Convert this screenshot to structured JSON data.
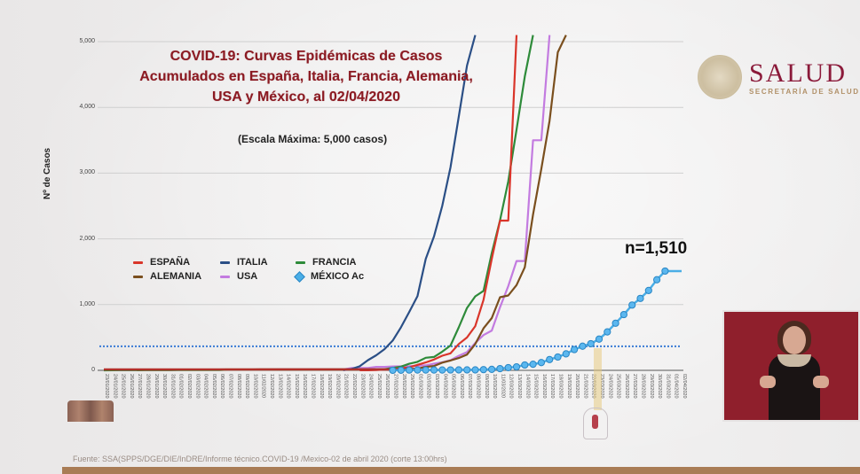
{
  "header": {
    "title_lines": [
      "COVID-19: Curvas Epidémicas de Casos",
      "Acumulados en España, Italia, Francia, Alemania,",
      "USA y México, al 02/04/2020"
    ],
    "subtitle": "(Escala Máxima: 5,000 casos)"
  },
  "logo": {
    "brand": "SALUD",
    "subtitle": "SECRETARÍA DE SALUD"
  },
  "annotation": "n=1,510",
  "footer": {
    "source": "Fuente: SSA(SPPS/DGE/DIE/InDRE/Informe técnico.COVID-19 /Mexico-02 de abril 2020 (corte 13:00hrs)"
  },
  "chart_data": {
    "type": "line",
    "title": "COVID-19: Curvas Epidémicas de Casos Acumulados en España, Italia, Francia, Alemania, USA y México, al 02/04/2020",
    "subtitle": "(Escala Máxima: 5,000 casos)",
    "xlabel": "",
    "ylabel": "Nº de Casos",
    "ylim": [
      0,
      5000
    ],
    "yticks": [
      "0",
      "1,000",
      "2,000",
      "3,000",
      "4,000",
      "5,000"
    ],
    "ytick_values": [
      0,
      1000,
      2000,
      3000,
      4000,
      5000
    ],
    "grid": true,
    "legend_position": "inside-left-middle",
    "x_start": "23/01/2020",
    "x_end": "02/04/2020",
    "x": [
      "23/01/2020",
      "24/01/2020",
      "25/01/2020",
      "26/01/2020",
      "27/01/2020",
      "28/01/2020",
      "29/01/2020",
      "30/01/2020",
      "31/01/2020",
      "01/02/2020",
      "02/02/2020",
      "03/02/2020",
      "04/02/2020",
      "05/02/2020",
      "06/02/2020",
      "07/02/2020",
      "08/02/2020",
      "09/02/2020",
      "10/02/2020",
      "11/02/2020",
      "12/02/2020",
      "13/02/2020",
      "14/02/2020",
      "15/02/2020",
      "16/02/2020",
      "17/02/2020",
      "18/02/2020",
      "19/02/2020",
      "20/02/2020",
      "21/02/2020",
      "22/02/2020",
      "23/02/2020",
      "24/02/2020",
      "25/02/2020",
      "26/02/2020",
      "27/02/2020",
      "28/02/2020",
      "29/02/2020",
      "01/03/2020",
      "02/03/2020",
      "03/03/2020",
      "04/03/2020",
      "05/03/2020",
      "06/03/2020",
      "07/03/2020",
      "08/03/2020",
      "09/03/2020",
      "10/03/2020",
      "11/03/2020",
      "12/03/2020",
      "13/03/2020",
      "14/03/2020",
      "15/03/2020",
      "16/03/2020",
      "17/03/2020",
      "18/03/2020",
      "19/03/2020",
      "20/03/2020",
      "21/03/2020",
      "22/03/2020",
      "23/03/2020",
      "24/03/2020",
      "25/03/2020",
      "26/03/2020",
      "27/03/2020",
      "28/03/2020",
      "29/03/2020",
      "30/03/2020",
      "31/03/2020",
      "01/04/2020",
      "02/04/2020"
    ],
    "reference_line": {
      "value": 365,
      "style": "dotted",
      "color": "#3a7bd5"
    },
    "highlight_date": "23/03/2020",
    "series": [
      {
        "name": "ITALIA",
        "color": "#2b4f86",
        "start_index": 29,
        "values": [
          3,
          20,
          62,
          155,
          229,
          322,
          453,
          655,
          888,
          1128,
          1694,
          2036,
          2502,
          3089,
          3858,
          4636,
          5883
        ]
      },
      {
        "name": "ESPAÑA",
        "color": "#d9352a",
        "start_index": 31,
        "values": [
          2,
          2,
          6,
          13,
          15,
          32,
          45,
          84,
          120,
          165,
          222,
          259,
          400,
          500,
          673,
          1073,
          1695,
          2277,
          2277,
          5232
        ]
      },
      {
        "name": "FRANCIA",
        "color": "#2e8b3a",
        "start_index": 0,
        "values": [
          0,
          2,
          3,
          3,
          3,
          4,
          5,
          5,
          6,
          6,
          6,
          6,
          6,
          6,
          6,
          11,
          11,
          11,
          11,
          11,
          11,
          11,
          12,
          12,
          12,
          12,
          12,
          12,
          12,
          12,
          12,
          12,
          12,
          14,
          18,
          38,
          57,
          100,
          130,
          191,
          204,
          285,
          377,
          653,
          949,
          1126,
          1209,
          1784,
          2281,
          2876,
          3661,
          4469,
          5423
        ]
      },
      {
        "name": "ALEMANIA",
        "color": "#7a4f1e",
        "start_index": 4,
        "values": [
          1,
          4,
          4,
          4,
          5,
          8,
          10,
          12,
          12,
          12,
          12,
          13,
          13,
          14,
          14,
          16,
          16,
          16,
          16,
          16,
          16,
          16,
          16,
          16,
          16,
          16,
          16,
          16,
          16,
          16,
          16,
          16,
          18,
          21,
          26,
          53,
          66,
          117,
          150,
          188,
          240,
          400,
          639,
          795,
          1112,
          1139,
          1296,
          1567,
          2369,
          3062,
          3795,
          4838,
          6012
        ]
      },
      {
        "name": "USA",
        "color": "#c37be0",
        "start_index": 0,
        "values": [
          1,
          1,
          2,
          2,
          5,
          5,
          5,
          5,
          6,
          7,
          8,
          11,
          11,
          11,
          12,
          12,
          12,
          12,
          12,
          13,
          13,
          15,
          15,
          15,
          15,
          15,
          15,
          15,
          15,
          15,
          35,
          35,
          35,
          53,
          53,
          59,
          60,
          62,
          70,
          76,
          101,
          122,
          153,
          221,
          278,
          417,
          537,
          605,
          959,
          1281,
          1663,
          1663,
          3500,
          3500,
          6421
        ]
      },
      {
        "name": "MÉXICO Ac",
        "color": "#4aaee6",
        "start_index": 35,
        "marker": "diamond",
        "values": [
          1,
          2,
          4,
          5,
          5,
          5,
          5,
          6,
          7,
          7,
          7,
          11,
          15,
          26,
          41,
          53,
          82,
          93,
          118,
          164,
          203,
          251,
          316,
          367,
          405,
          475,
          585,
          717,
          848,
          993,
          1094,
          1215,
          1378,
          1510,
          1510,
          1510
        ]
      }
    ],
    "annotations": [
      {
        "text": "n=1,510",
        "x": "02/04/2020",
        "y": 1510
      }
    ]
  }
}
